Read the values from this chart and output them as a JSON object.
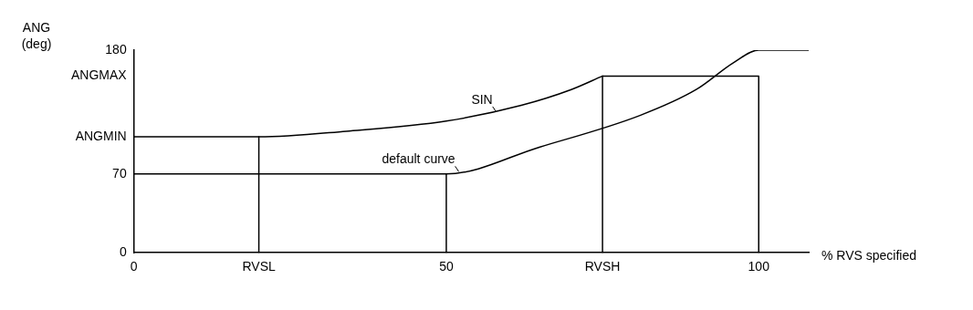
{
  "chart_data": {
    "type": "line",
    "xlabel": "% RVS specified",
    "ylabel": "ANG (deg)",
    "xlim": [
      0,
      108
    ],
    "ylim": [
      0,
      180
    ],
    "xticks": [
      0,
      {
        "value": 20,
        "label": "RVSL"
      },
      50,
      {
        "value": 75,
        "label": "RVSH"
      },
      100
    ],
    "yticks": [
      0,
      70,
      {
        "value": 103,
        "label": "ANGMIN"
      },
      {
        "value": 157,
        "label": "ANGMAX"
      },
      180
    ],
    "grid": false,
    "legend": false,
    "marker": "none",
    "line_style": "solid",
    "annotations": [
      {
        "text": "SIN",
        "x": 58,
        "y": 125
      },
      {
        "text": "default curve",
        "x": 52,
        "y": 72
      }
    ],
    "series": [
      {
        "color": "#000000",
        "x": [
          0,
          20,
          34,
          50,
          62,
          70,
          75
        ],
        "values": [
          103,
          103,
          108,
          117,
          131,
          145,
          157
        ]
      },
      {
        "color": "#000000",
        "x": [
          0,
          50,
          65,
          81,
          90,
          96,
          100,
          108
        ],
        "values": [
          70,
          70,
          94,
          122,
          145,
          169,
          180,
          180
        ]
      },
      {
        "color": "#000000",
        "x": [
          20,
          20
        ],
        "values": [
          0,
          103
        ]
      },
      {
        "color": "#000000",
        "x": [
          50,
          50
        ],
        "values": [
          0,
          70
        ]
      },
      {
        "color": "#000000",
        "x": [
          75,
          75,
          100,
          100
        ],
        "values": [
          0,
          157,
          157,
          0
        ]
      }
    ]
  }
}
